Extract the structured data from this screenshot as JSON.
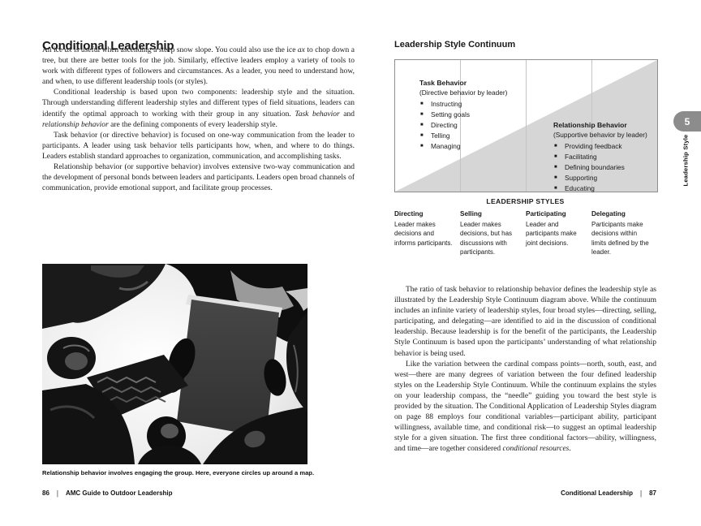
{
  "left": {
    "title": "Conditional Leadership",
    "paragraphs": {
      "p1": [
        {
          "t": "An ice "
        },
        {
          "t": "ax",
          "i": 1
        },
        {
          "t": " is useful when ascending a steep snow slope. You could also use the ice "
        },
        {
          "t": "ax",
          "i": 1
        },
        {
          "t": " to chop down a tree, but there are better tools for the job. Similarly, effective leaders employ a variety of tools to work with different types of followers and circumstances. As a leader, you need to understand how, and when, to use different leadership tools (or styles)."
        }
      ],
      "p2": [
        {
          "t": "Conditional leadership is based upon two components: leadership style and the situation. Through understanding different leadership styles and different types of field situations, leaders can identify the optimal approach to working with their group in any situation. "
        },
        {
          "t": "Task behavior",
          "i": 1
        },
        {
          "t": " and "
        },
        {
          "t": "relationship behavior",
          "i": 1
        },
        {
          "t": " are the defining components of every leadership style."
        }
      ],
      "p3": [
        {
          "t": "Task behavior (or directive behavior) is focused on one-way communication from the leader to participants. A leader using task behavior tells participants how, when, and where to do things. Leaders establish standard approaches to organization, communication, and accomplishing tasks."
        }
      ],
      "p4": [
        {
          "t": "Relationship behavior (or supportive behavior) involves extensive two-way communication and the development of personal bonds between leaders and participants. Leaders open broad channels of communication, provide emotional support, and facilitate group processes."
        }
      ]
    },
    "photo_caption": "Relationship behavior involves engaging the group. Here, everyone circles up around a map.",
    "footer": {
      "page_number": "86",
      "separator": "|",
      "book_title": "AMC Guide to Outdoor Leadership"
    }
  },
  "right": {
    "heading": "Leadership Style Continuum",
    "diagram": {
      "task": {
        "title": "Task Behavior",
        "subtitle": "(Directive behavior by leader)",
        "items": [
          "Instructing",
          "Setting goals",
          "Directing",
          "Telling",
          "Managing"
        ]
      },
      "relationship": {
        "title": "Relationship Behavior",
        "subtitle": "(Supportive behavior by leader)",
        "items": [
          "Providing feedback",
          "Facilitating",
          "Defining boundaries",
          "Supporting",
          "Educating"
        ]
      }
    },
    "styles_section": {
      "heading": "LEADERSHIP STYLES",
      "columns": [
        {
          "title": "Directing",
          "text": "Leader makes decisions and informs participants."
        },
        {
          "title": "Selling",
          "text": "Leader makes decisions, but has discussions with participants."
        },
        {
          "title": "Participating",
          "text": "Leader and participants make joint decisions."
        },
        {
          "title": "Delegating",
          "text": "Participants make decisions within limits defined by the leader."
        }
      ]
    },
    "paragraphs": {
      "p1": [
        {
          "t": "The ratio of task behavior to relationship behavior defines the leadership style as illustrated by the Leadership Style Continuum diagram above. While the continuum includes an infinite variety of leadership styles, four broad styles—directing, selling, participating, and delegating—are identified to aid in the discussion of conditional leadership. Because leadership is for the benefit of the participants, the Leadership Style Continuum is based upon the participants’ understanding of what relationship behavior is being used."
        }
      ],
      "p2": [
        {
          "t": "Like the variation between the cardinal compass points—north, south, east, and west—there are many degrees of variation between the four defined leadership styles on the Leadership Style Continuum. While the continuum explains the styles on your leadership compass, the “needle” guiding you toward the best style is provided by the situation. The Conditional Application of Leadership Styles diagram on page 88 employs four conditional variables—participant ability, participant willingness, available time, and conditional risk—to suggest an optimal leadership style for a given situation. The first three conditional factors—ability, willingness, and time—are together considered "
        },
        {
          "t": "conditional resources",
          "i": 1
        },
        {
          "t": "."
        }
      ]
    },
    "footer": {
      "section_title": "Conditional Leadership",
      "separator": "|",
      "page_number": "87"
    }
  },
  "tab": {
    "chapter_number": "5",
    "label": "Leadership Style"
  },
  "colors": {
    "triangle_gray": "#d6d6d6",
    "tab_gray": "#8c8c8c",
    "divider_gray": "#c4c4c4"
  }
}
